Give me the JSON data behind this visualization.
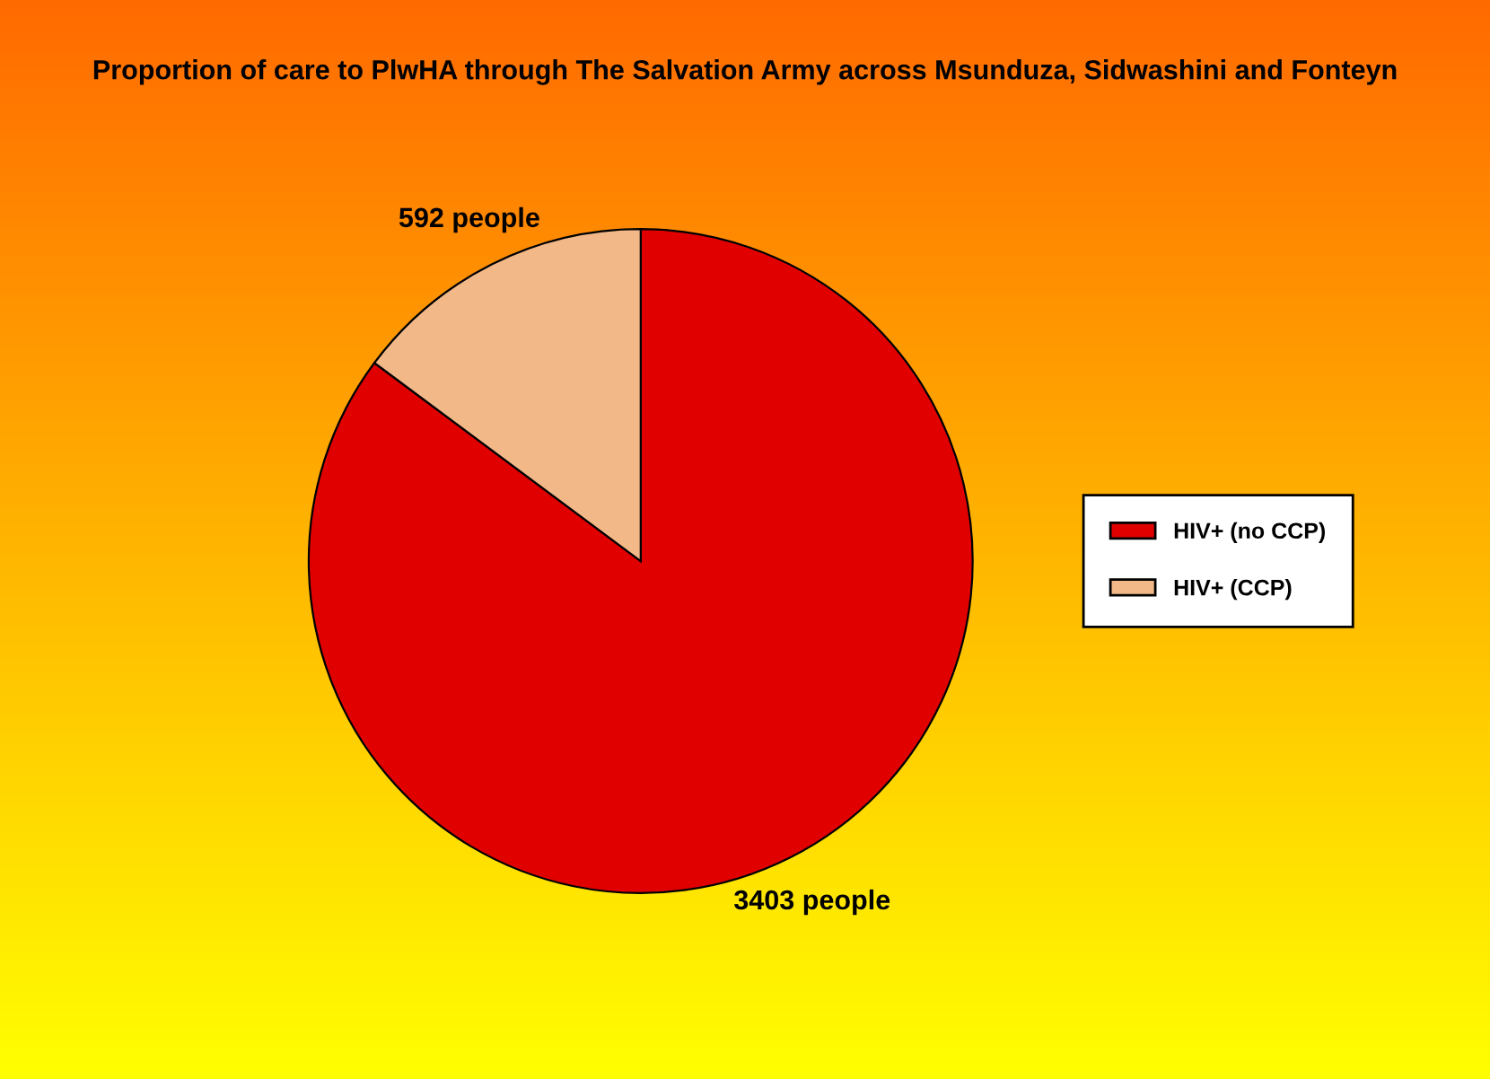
{
  "chart_data": {
    "type": "pie",
    "title": "Proportion of care to PlwHA through The Salvation Army across Msunduza, Sidwashini and Fonteyn",
    "categories": [
      "HIV+ (no CCP)",
      "HIV+ (CCP)"
    ],
    "values": [
      3403,
      592
    ],
    "colors": [
      "#e00000",
      "#f2b888"
    ],
    "value_labels": [
      "3403 people",
      "592 people"
    ],
    "legend": "right"
  }
}
